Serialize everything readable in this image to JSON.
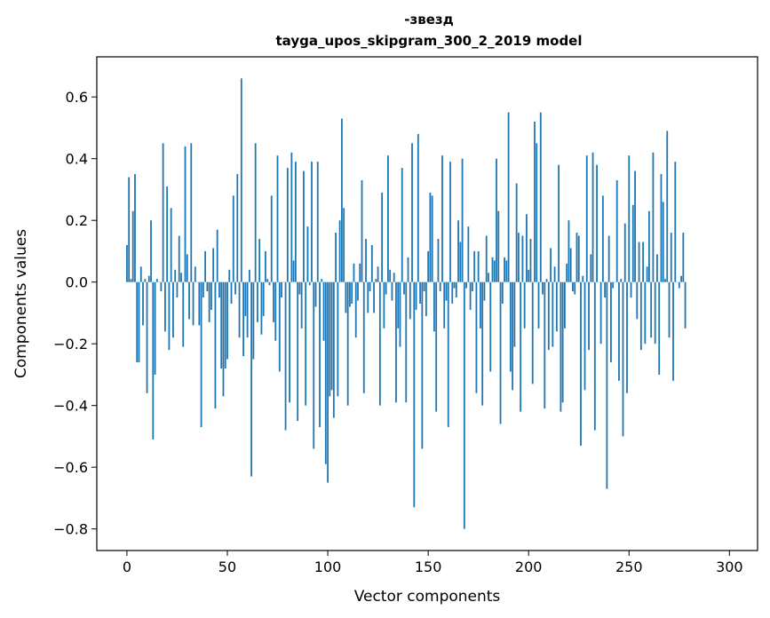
{
  "chart_data": {
    "type": "bar",
    "title_line1": "-звезд",
    "title_line2": "tayga_upos_skipgram_300_2_2019 model",
    "xlabel": "Vector components",
    "ylabel": "Components values",
    "xlim": [
      -15,
      314
    ],
    "ylim": [
      -0.87,
      0.73
    ],
    "xticks": [
      0,
      50,
      100,
      150,
      200,
      250,
      300
    ],
    "xtick_labels": [
      "0",
      "50",
      "100",
      "150",
      "200",
      "250",
      "300"
    ],
    "yticks": [
      -0.8,
      -0.6,
      -0.4,
      -0.2,
      0.0,
      0.2,
      0.4,
      0.6
    ],
    "ytick_labels": [
      "−0.8",
      "−0.6",
      "−0.4",
      "−0.2",
      "0.0",
      "0.2",
      "0.4",
      "0.6"
    ],
    "bar_color": "#1f77b4",
    "values": [
      0.12,
      0.34,
      0.01,
      0.23,
      0.35,
      -0.26,
      -0.26,
      0.05,
      -0.14,
      0.01,
      -0.36,
      0.02,
      0.2,
      -0.51,
      -0.3,
      0.01,
      0.0,
      -0.03,
      0.45,
      -0.16,
      0.31,
      -0.22,
      0.24,
      -0.18,
      0.04,
      -0.05,
      0.15,
      0.03,
      -0.21,
      0.44,
      0.09,
      -0.12,
      0.45,
      -0.14,
      0.05,
      0.0,
      -0.14,
      -0.47,
      -0.05,
      0.1,
      -0.03,
      -0.13,
      -0.09,
      0.11,
      -0.41,
      0.17,
      -0.05,
      -0.28,
      -0.37,
      -0.28,
      -0.25,
      0.04,
      -0.07,
      0.28,
      -0.04,
      0.35,
      -0.18,
      0.66,
      -0.24,
      -0.11,
      -0.18,
      0.04,
      -0.63,
      -0.25,
      0.45,
      -0.13,
      0.14,
      -0.17,
      -0.11,
      0.1,
      0.01,
      -0.01,
      0.28,
      -0.13,
      -0.19,
      0.41,
      -0.29,
      -0.05,
      0.0,
      -0.48,
      0.37,
      -0.39,
      0.42,
      0.07,
      0.39,
      -0.45,
      -0.04,
      -0.15,
      0.36,
      -0.4,
      0.18,
      -0.01,
      0.39,
      -0.54,
      -0.08,
      0.39,
      -0.47,
      0.01,
      -0.19,
      -0.59,
      -0.65,
      -0.37,
      -0.35,
      -0.44,
      0.16,
      -0.37,
      0.2,
      0.53,
      0.24,
      -0.1,
      -0.4,
      -0.08,
      -0.07,
      0.06,
      -0.18,
      -0.06,
      0.06,
      0.33,
      -0.36,
      0.14,
      -0.1,
      -0.03,
      0.12,
      -0.1,
      0.01,
      0.05,
      -0.4,
      0.29,
      -0.15,
      -0.04,
      0.41,
      0.04,
      -0.06,
      0.03,
      -0.39,
      -0.15,
      -0.21,
      0.37,
      -0.04,
      -0.39,
      0.08,
      -0.12,
      0.45,
      -0.73,
      -0.09,
      0.48,
      -0.07,
      -0.54,
      -0.03,
      -0.11,
      0.1,
      0.29,
      0.28,
      -0.16,
      -0.42,
      0.14,
      -0.03,
      0.41,
      -0.15,
      -0.06,
      -0.47,
      0.39,
      -0.07,
      -0.02,
      -0.05,
      0.2,
      0.13,
      0.4,
      -0.8,
      -0.02,
      0.18,
      -0.09,
      -0.03,
      0.1,
      -0.36,
      0.1,
      -0.15,
      -0.4,
      -0.06,
      0.15,
      0.03,
      -0.29,
      0.08,
      0.07,
      0.4,
      0.23,
      -0.46,
      -0.07,
      0.08,
      0.07,
      0.55,
      -0.29,
      -0.35,
      -0.21,
      0.32,
      0.16,
      -0.42,
      0.15,
      -0.15,
      0.22,
      0.04,
      0.14,
      -0.33,
      0.52,
      0.45,
      -0.15,
      0.55,
      -0.04,
      -0.41,
      0.01,
      -0.22,
      0.11,
      -0.21,
      0.05,
      -0.16,
      0.38,
      -0.42,
      -0.39,
      -0.15,
      0.06,
      0.2,
      0.11,
      -0.03,
      -0.04,
      0.16,
      0.15,
      -0.53,
      0.02,
      -0.35,
      0.41,
      -0.22,
      0.09,
      0.42,
      -0.48,
      0.38,
      0.0,
      -0.2,
      0.28,
      -0.05,
      -0.67,
      0.15,
      -0.26,
      -0.02,
      0.0,
      0.33,
      -0.32,
      0.01,
      -0.5,
      0.19,
      -0.36,
      0.41,
      -0.05,
      0.25,
      0.36,
      -0.12,
      0.13,
      -0.22,
      0.13,
      -0.2,
      0.05,
      0.23,
      -0.18,
      0.42,
      -0.2,
      0.09,
      -0.3,
      0.35,
      0.26,
      0.01,
      0.49,
      -0.18,
      0.16,
      -0.32,
      0.39,
      0.0,
      -0.02,
      0.02,
      0.16,
      -0.15
    ]
  }
}
